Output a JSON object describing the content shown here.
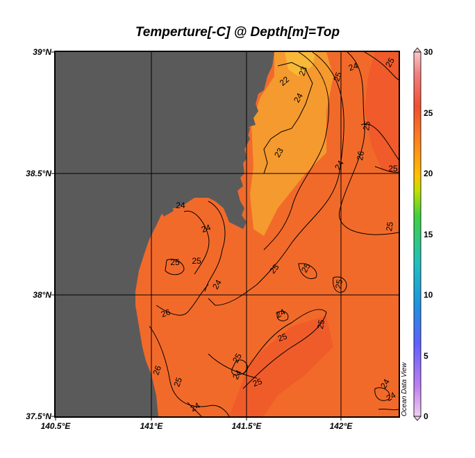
{
  "title": "Temperture[-C] @ Depth[m]=Top",
  "credit": "Ocean Data View",
  "axes": {
    "lat_ticks": [
      "39°N",
      "38.5°N",
      "38°N",
      "37.5°N"
    ],
    "lon_ticks": [
      "140.5°E",
      "141°E",
      "141.5°E",
      "142°E"
    ]
  },
  "colorbar": {
    "ticks": [
      "30",
      "25",
      "20",
      "15",
      "10",
      "5",
      "0"
    ],
    "range": [
      0,
      30
    ],
    "colors": [
      "#f0d0f0",
      "#c080f0",
      "#6060ff",
      "#2090e0",
      "#20c0c0",
      "#40d040",
      "#c0e000",
      "#ffc000",
      "#ff8020",
      "#f05030",
      "#f08080",
      "#f8c8c8"
    ]
  },
  "map": {
    "land_color": "#5a5a5a",
    "ocean_color": "#f26a2a",
    "contour_labels": [
      "25",
      "24",
      "23",
      "22",
      "24",
      "25",
      "25",
      "25",
      "23",
      "24",
      "26",
      "24",
      "25",
      "24",
      "25",
      "25",
      "26",
      "25",
      "24",
      "25",
      "26",
      "25",
      "24",
      "24",
      "24",
      "25",
      "24",
      "25",
      "25",
      "24",
      "25",
      "25"
    ]
  }
}
